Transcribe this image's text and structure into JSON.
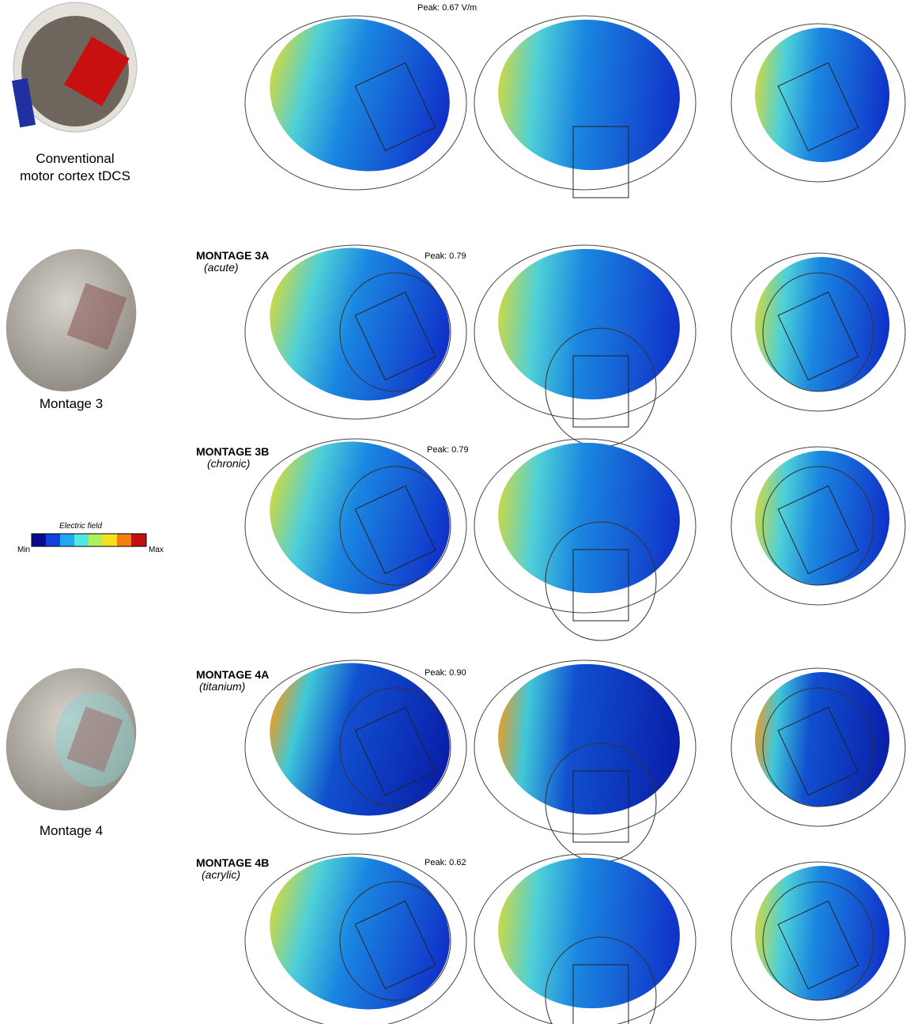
{
  "left_panels": [
    {
      "label_lines": [
        "Conventional",
        "motor cortex tDCS"
      ]
    },
    {
      "label_lines": [
        "Montage 3"
      ]
    },
    {
      "label_lines": [
        "Montage 4"
      ]
    }
  ],
  "colorbar": {
    "title": "Electric field",
    "min_label": "Min",
    "max_label": "Max"
  },
  "rows": [
    {
      "peak": "Peak: 0.67 V/m"
    },
    {
      "title": "MONTAGE 3A",
      "subtitle": "(acute)",
      "peak": "Peak: 0.79"
    },
    {
      "title": "MONTAGE 3B",
      "subtitle": "(chronic)",
      "peak": "Peak: 0.79"
    },
    {
      "title": "MONTAGE 4A",
      "subtitle": "(titanium)",
      "peak": "Peak: 0.90"
    },
    {
      "title": "MONTAGE 4B",
      "subtitle": "(acrylic)",
      "peak": "Peak: 0.62"
    }
  ]
}
